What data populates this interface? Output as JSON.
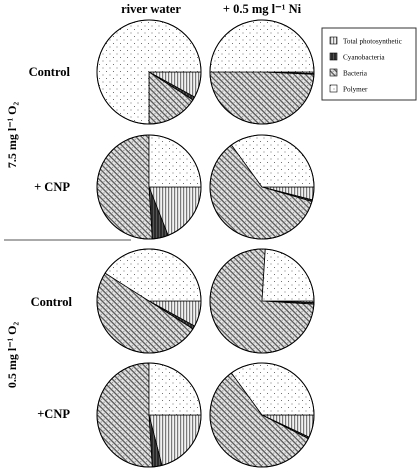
{
  "column_headers": [
    "river water",
    "+ 0.5 mg l⁻¹ Ni"
  ],
  "row_labels": [
    "Control",
    "+ CNP",
    "Control",
    "+CNP"
  ],
  "group_labels": [
    "7.5 mg l⁻¹ O₂",
    "0.5 mg l⁻¹ O₂"
  ],
  "legend": [
    {
      "label": "Total photosynthetic",
      "pattern": "vertical-lines",
      "color": "#bdbdbd"
    },
    {
      "label": "Cyanobacteria",
      "pattern": "solid-dark",
      "color": "#333333"
    },
    {
      "label": "Bacteria",
      "pattern": "diagonal-dots",
      "color": "#9e9e9e"
    },
    {
      "label": "Polymer",
      "pattern": "sparse-dots",
      "color": "#ffffff"
    }
  ],
  "chart_data": [
    {
      "type": "pie",
      "row": "7.5 mg l-1 O2 / Control",
      "column": "river water",
      "slices": [
        {
          "label": "Total photosynthetic",
          "value": 8
        },
        {
          "label": "Cyanobacteria",
          "value": 1
        },
        {
          "label": "Bacteria",
          "value": 16
        },
        {
          "label": "Polymer",
          "value": 75
        }
      ]
    },
    {
      "type": "pie",
      "row": "7.5 mg l-1 O2 / Control",
      "column": "+ 0.5 mg l-1 Ni",
      "slices": [
        {
          "label": "Total photosynthetic",
          "value": 0.5
        },
        {
          "label": "Cyanobacteria",
          "value": 0.2
        },
        {
          "label": "Bacteria",
          "value": 49.3
        },
        {
          "label": "Polymer",
          "value": 50
        }
      ]
    },
    {
      "type": "pie",
      "row": "7.5 mg l-1 O2 / + CNP",
      "column": "river water",
      "slices": [
        {
          "label": "Total photosynthetic",
          "value": 19
        },
        {
          "label": "Cyanobacteria",
          "value": 5
        },
        {
          "label": "Bacteria",
          "value": 51
        },
        {
          "label": "Polymer",
          "value": 25
        }
      ]
    },
    {
      "type": "pie",
      "row": "7.5 mg l-1 O2 / + CNP",
      "column": "+ 0.5 mg l-1 Ni",
      "slices": [
        {
          "label": "Total photosynthetic",
          "value": 4
        },
        {
          "label": "Cyanobacteria",
          "value": 0.5
        },
        {
          "label": "Bacteria",
          "value": 60.5
        },
        {
          "label": "Polymer",
          "value": 35
        }
      ]
    },
    {
      "type": "pie",
      "row": "0.5 mg l-1 O2 / Control",
      "column": "river water",
      "slices": [
        {
          "label": "Total photosynthetic",
          "value": 8
        },
        {
          "label": "Cyanobacteria",
          "value": 1
        },
        {
          "label": "Bacteria",
          "value": 50
        },
        {
          "label": "Polymer",
          "value": 41
        }
      ]
    },
    {
      "type": "pie",
      "row": "0.5 mg l-1 O2 / Control",
      "column": "+ 0.5 mg l-1 Ni",
      "slices": [
        {
          "label": "Total photosynthetic",
          "value": 0.5
        },
        {
          "label": "Cyanobacteria",
          "value": 0.5
        },
        {
          "label": "Bacteria",
          "value": 75
        },
        {
          "label": "Polymer",
          "value": 24
        }
      ]
    },
    {
      "type": "pie",
      "row": "0.5 mg l-1 O2 / +CNP",
      "column": "river water",
      "slices": [
        {
          "label": "Total photosynthetic",
          "value": 21
        },
        {
          "label": "Cyanobacteria",
          "value": 3
        },
        {
          "label": "Bacteria",
          "value": 51
        },
        {
          "label": "Polymer",
          "value": 25
        }
      ]
    },
    {
      "type": "pie",
      "row": "0.5 mg l-1 O2 / +CNP",
      "column": "+ 0.5 mg l-1 Ni",
      "slices": [
        {
          "label": "Total photosynthetic",
          "value": 7
        },
        {
          "label": "Cyanobacteria",
          "value": 0.5
        },
        {
          "label": "Bacteria",
          "value": 57.5
        },
        {
          "label": "Polymer",
          "value": 35
        }
      ]
    }
  ]
}
